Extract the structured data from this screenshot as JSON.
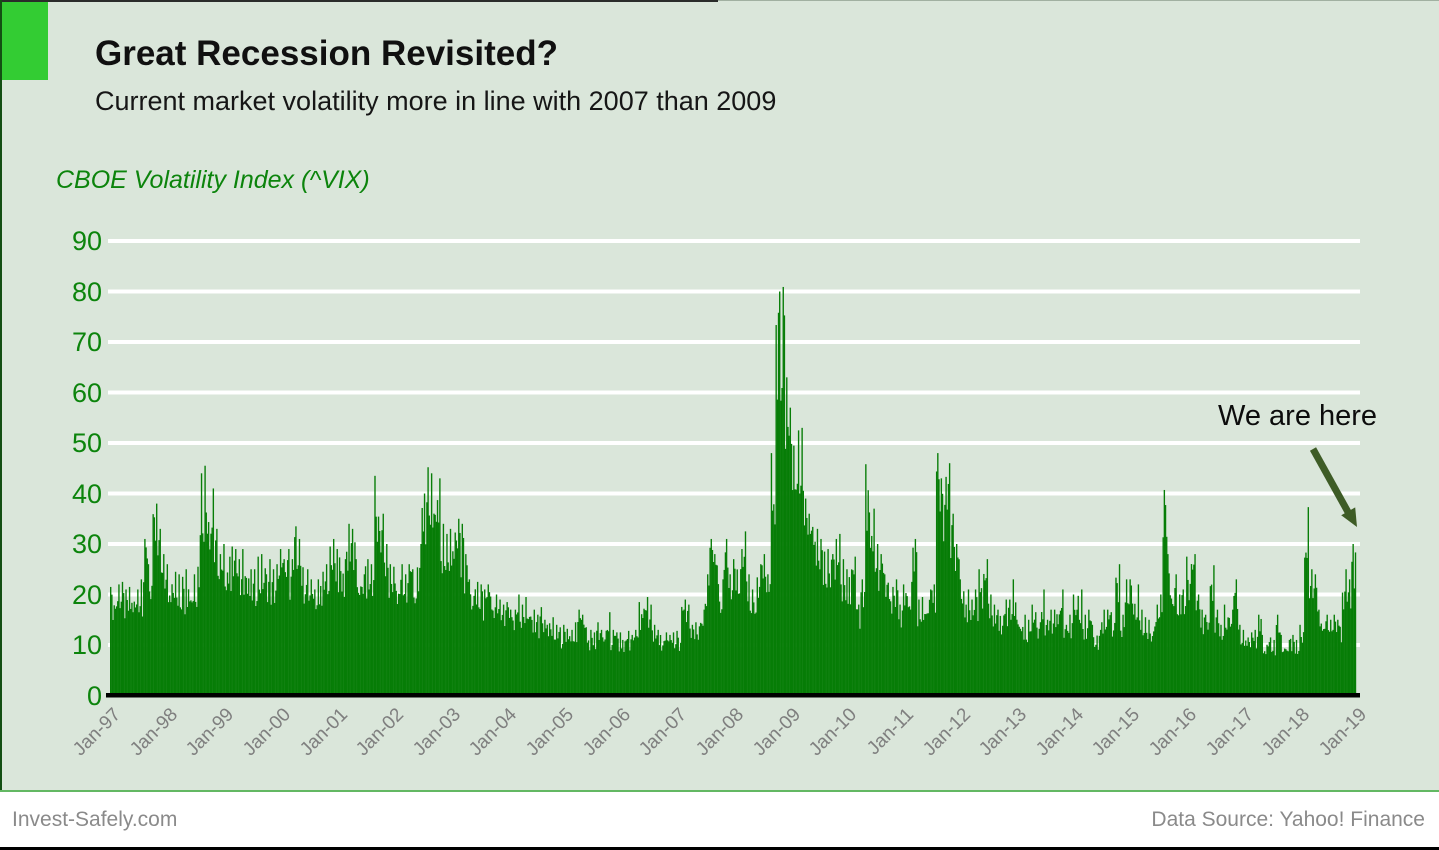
{
  "page": {
    "background": "#dae6da",
    "accent_square_color": "#33cc33",
    "left_edge_color": "#134f13"
  },
  "header": {
    "title": "Great Recession Revisited?",
    "subtitle": "Current market volatility more in line with 2007 than 2009"
  },
  "chart_label": "CBOE Volatility Index (^VIX)",
  "annotation": {
    "text": "We are here",
    "arrow_color": "#3e5c26"
  },
  "footer": {
    "left": "Invest-Safely.com",
    "right": "Data Source: Yahoo! Finance"
  },
  "chart_data": {
    "type": "bar",
    "title": "CBOE Volatility Index (^VIX)",
    "ylabel": "",
    "xlabel": "",
    "frequency": "monthly",
    "x_start": "Jan-97",
    "x_end": "Dec-18",
    "x_tick_labels": [
      "Jan-97",
      "Jan-98",
      "Jan-99",
      "Jan-00",
      "Jan-01",
      "Jan-02",
      "Jan-03",
      "Jan-04",
      "Jan-05",
      "Jan-06",
      "Jan-07",
      "Jan-08",
      "Jan-09",
      "Jan-10",
      "Jan-11",
      "Jan-12",
      "Jan-13",
      "Jan-14",
      "Jan-15",
      "Jan-16",
      "Jan-17",
      "Jan-18",
      "Jan-19"
    ],
    "values": [
      21.5,
      22,
      22.5,
      21,
      21.5,
      21,
      23,
      31,
      26,
      38,
      33,
      28,
      26,
      24.5,
      24,
      23.5,
      25,
      24,
      25.5,
      44,
      45.5,
      41,
      33,
      28,
      30,
      29.5,
      29,
      27,
      29,
      25,
      25,
      27.5,
      28,
      27,
      25,
      26,
      29,
      29,
      27,
      33.5,
      31,
      25,
      23,
      21,
      23,
      26,
      29.5,
      31,
      29,
      27,
      34,
      33,
      27,
      24,
      27,
      26,
      43.5,
      36,
      30,
      26,
      25.5,
      26,
      24,
      26,
      25,
      30,
      40,
      45.2,
      44,
      43,
      34,
      32,
      33,
      35,
      34,
      28,
      23,
      22.5,
      22,
      21,
      22,
      20,
      19,
      18,
      18.5,
      17,
      20,
      18,
      19.5,
      17,
      16,
      17.5,
      15,
      15.5,
      14,
      13.5,
      14,
      13,
      14.5,
      17,
      16,
      13,
      12.5,
      14.5,
      13,
      16.5,
      13,
      12.5,
      12.5,
      12.8,
      12,
      13,
      18.5,
      19.5,
      18,
      14,
      13,
      12.5,
      12,
      12.5,
      12.8,
      19,
      18,
      14,
      14.5,
      17,
      24,
      31,
      28,
      23,
      31,
      24,
      27,
      29,
      32.5,
      24,
      21,
      26,
      28,
      24,
      48,
      80,
      80.9,
      63,
      57,
      52.5,
      53,
      39,
      36,
      33,
      31,
      28.5,
      29,
      31,
      32,
      27,
      25,
      27.5,
      18,
      23,
      45.8,
      37,
      30,
      28,
      24,
      21.5,
      23,
      18,
      22,
      22.5,
      31,
      19,
      19.5,
      21,
      22,
      48,
      43,
      46,
      36,
      30,
      23,
      21,
      19,
      21,
      25,
      27,
      20,
      18,
      17,
      19,
      19,
      23,
      15,
      16,
      15,
      18,
      16.5,
      21,
      15,
      17,
      17,
      21,
      14,
      16,
      20,
      21,
      16,
      17,
      14,
      13,
      17,
      17,
      16.5,
      26,
      16,
      23,
      23,
      22,
      17,
      15.5,
      15,
      18,
      20,
      40.7,
      28,
      24,
      20,
      21,
      27.5,
      28,
      20,
      17,
      16,
      25.8,
      17,
      14,
      18,
      17,
      23,
      14,
      13,
      12.5,
      13,
      16,
      12,
      11.5,
      11,
      16,
      12,
      11,
      12,
      11,
      14,
      37.3,
      25,
      24,
      17,
      16,
      15,
      16,
      15,
      25,
      23,
      30
    ],
    "ylim": [
      0,
      90
    ],
    "y_ticks": [
      0,
      10,
      20,
      30,
      40,
      50,
      60,
      70,
      80,
      90
    ],
    "grid": "horizontal-white-behind-bars",
    "legend": "none",
    "bar_color": "#077d07",
    "axis_label_color": "#0c840c",
    "x_label_color": "#7f7f7f",
    "baseline_color": "#000000"
  }
}
